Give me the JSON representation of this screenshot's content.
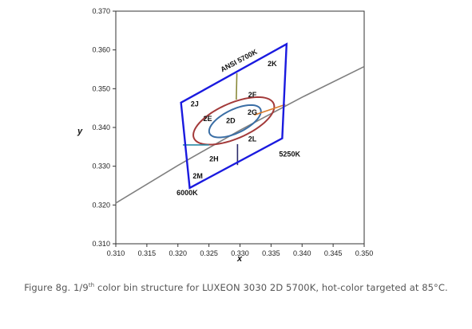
{
  "caption": {
    "prefix": "Figure 8g. 1/9",
    "sup": "th",
    "suffix": " color bin structure for LUXEON 3030 2D 5700K, hot-color targeted at 85°C."
  },
  "chart_data": {
    "type": "scatter",
    "xlabel": "x",
    "ylabel": "y",
    "xlim": [
      0.31,
      0.35
    ],
    "ylim": [
      0.31,
      0.37
    ],
    "x_ticks": [
      "0.310",
      "0.315",
      "0.320",
      "0.325",
      "0.330",
      "0.335",
      "0.340",
      "0.345",
      "0.350"
    ],
    "y_ticks": [
      "0.310",
      "0.320",
      "0.330",
      "0.340",
      "0.350",
      "0.360",
      "0.370"
    ],
    "grid": false,
    "colors": {
      "blackbody": "#7f7f7f",
      "bin_outline": "#1a1adf",
      "outer_ellipse": "#a33a3a",
      "inner_ellipse": "#3a6ea5",
      "divider_olive": "#8a8a3a",
      "divider_orange": "#d97a2a",
      "divider_navy": "#2a2a6a",
      "divider_teal": "#2a8aa5"
    },
    "blackbody_curve": [
      [
        0.31,
        0.3205
      ],
      [
        0.32,
        0.3302
      ],
      [
        0.33,
        0.3393
      ],
      [
        0.34,
        0.3478
      ],
      [
        0.35,
        0.3557
      ]
    ],
    "bin_outline": [
      [
        0.3205,
        0.3464
      ],
      [
        0.3375,
        0.3615
      ],
      [
        0.3368,
        0.3372
      ],
      [
        0.3219,
        0.3244
      ]
    ],
    "outer_ellipse": {
      "center": [
        0.329,
        0.3417
      ],
      "semi_axes": [
        0.008,
        0.004
      ],
      "angle_deg": 42
    },
    "inner_ellipse": {
      "center": [
        0.3292,
        0.3416
      ],
      "semi_axes": [
        0.0053,
        0.0026
      ],
      "angle_deg": 45
    },
    "dividers": [
      {
        "color": "divider_olive",
        "points": [
          [
            0.3295,
            0.354
          ],
          [
            0.3294,
            0.3472
          ]
        ]
      },
      {
        "color": "divider_navy",
        "points": [
          [
            0.3296,
            0.3357
          ],
          [
            0.3296,
            0.3303
          ]
        ]
      },
      {
        "color": "divider_orange",
        "points": [
          [
            0.3323,
            0.3432
          ],
          [
            0.3373,
            0.3459
          ]
        ]
      },
      {
        "color": "divider_teal",
        "points": [
          [
            0.3208,
            0.3355
          ],
          [
            0.325,
            0.3355
          ]
        ]
      }
    ],
    "bin_labels": [
      {
        "text": "2K",
        "x": 0.3352,
        "y": 0.3558
      },
      {
        "text": "2J",
        "x": 0.3227,
        "y": 0.3454
      },
      {
        "text": "2F",
        "x": 0.332,
        "y": 0.3478
      },
      {
        "text": "2E",
        "x": 0.3248,
        "y": 0.3416
      },
      {
        "text": "2D",
        "x": 0.3285,
        "y": 0.3411
      },
      {
        "text": "2G",
        "x": 0.332,
        "y": 0.3433
      },
      {
        "text": "2L",
        "x": 0.332,
        "y": 0.3364
      },
      {
        "text": "2H",
        "x": 0.3258,
        "y": 0.3313
      },
      {
        "text": "5250K",
        "x": 0.338,
        "y": 0.3325
      },
      {
        "text": "2M",
        "x": 0.3232,
        "y": 0.3268
      },
      {
        "text": "6000K",
        "x": 0.3215,
        "y": 0.3225
      }
    ],
    "rotated_label": {
      "text": "ANSI 5700K",
      "x": 0.33,
      "y": 0.3567,
      "angle_deg": -28
    }
  }
}
